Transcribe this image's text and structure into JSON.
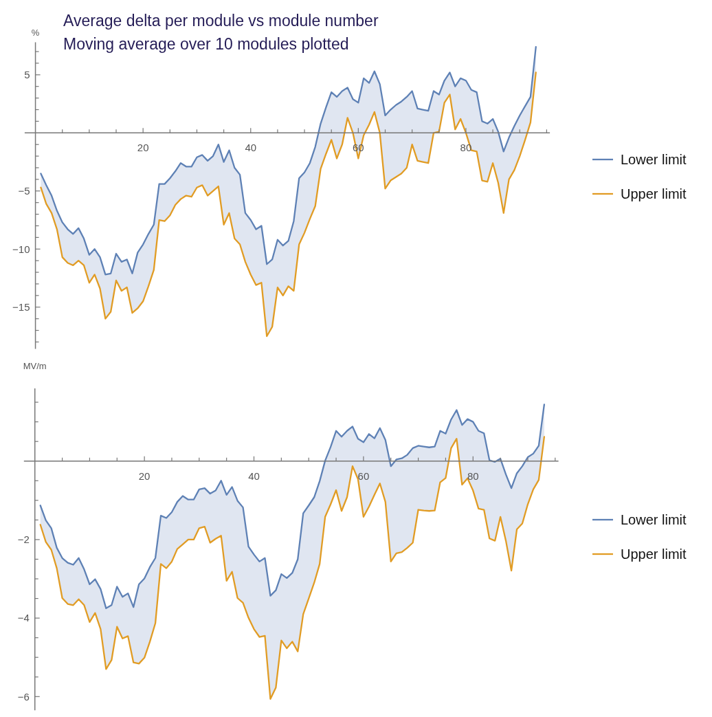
{
  "chart_data": [
    {
      "type": "line",
      "title": "Average delta per module vs module number",
      "subtitle": "Moving average over 10 modules plotted",
      "ylabel": "%",
      "legend": "right",
      "marker": "none",
      "line_style": "solid",
      "grid": false,
      "x": [
        1,
        2,
        3,
        4,
        5,
        6,
        7,
        8,
        9,
        10,
        11,
        12,
        13,
        14,
        15,
        16,
        17,
        18,
        19,
        20,
        21,
        22,
        23,
        24,
        25,
        26,
        27,
        28,
        29,
        30,
        31,
        32,
        33,
        34,
        35,
        36,
        37,
        38,
        39,
        40,
        41,
        42,
        43,
        44,
        45,
        46,
        47,
        48,
        49,
        50,
        51,
        52,
        53,
        54,
        55,
        56,
        57,
        58,
        59,
        60,
        61,
        62,
        63,
        64,
        65,
        66,
        67,
        68,
        69,
        70,
        71,
        72,
        73,
        74,
        75,
        76,
        77,
        78,
        79,
        80,
        81,
        82,
        83,
        84,
        85,
        86,
        87,
        88,
        89,
        90,
        91,
        92,
        93
      ],
      "xlim": [
        -2,
        95.6
      ],
      "ylim": [
        -18.6,
        7.8
      ],
      "xticks": [
        {
          "value": 5,
          "label": null
        },
        {
          "value": 10,
          "label": null
        },
        {
          "value": 15,
          "label": null
        },
        20,
        {
          "value": 25,
          "label": null
        },
        {
          "value": 30,
          "label": null
        },
        {
          "value": 35,
          "label": null
        },
        40,
        {
          "value": 45,
          "label": null
        },
        {
          "value": 50,
          "label": null
        },
        {
          "value": 55,
          "label": null
        },
        60,
        {
          "value": 65,
          "label": null
        },
        {
          "value": 70,
          "label": null
        },
        {
          "value": 75,
          "label": null
        },
        80,
        {
          "value": 85,
          "label": null
        },
        {
          "value": 90,
          "label": null
        },
        {
          "value": 95,
          "label": null
        }
      ],
      "yticks": [
        {
          "value": -18,
          "label": null
        },
        {
          "value": -17,
          "label": null
        },
        {
          "value": -16,
          "label": null
        },
        -15,
        {
          "value": -14,
          "label": null
        },
        {
          "value": -13,
          "label": null
        },
        {
          "value": -12,
          "label": null
        },
        {
          "value": -11,
          "label": null
        },
        -10,
        {
          "value": -9,
          "label": null
        },
        {
          "value": -8,
          "label": null
        },
        {
          "value": -7,
          "label": null
        },
        {
          "value": -6,
          "label": null
        },
        -5,
        {
          "value": -4,
          "label": null
        },
        {
          "value": -3,
          "label": null
        },
        {
          "value": -2,
          "label": null
        },
        {
          "value": -1,
          "label": null
        },
        {
          "value": 1,
          "label": null
        },
        {
          "value": 2,
          "label": null
        },
        {
          "value": 3,
          "label": null
        },
        {
          "value": 4,
          "label": null
        },
        5,
        {
          "value": 6,
          "label": null
        },
        {
          "value": 7,
          "label": null
        }
      ],
      "series": [
        {
          "name": "Lower limit",
          "color": "#5e81b5",
          "lower": [
            -4.7,
            -6.1,
            -6.9,
            -8.3,
            -10.7,
            -11.2,
            -11.4,
            -11.0,
            -11.4,
            -12.9,
            -12.2,
            -13.4,
            -16.0,
            -15.4,
            -12.7,
            -13.6,
            -13.3,
            -15.5,
            -15.1,
            -14.5,
            -13.2,
            -11.8,
            -7.5,
            -7.6,
            -7.1,
            -6.2,
            -5.7,
            -5.4,
            -5.5,
            -4.7,
            -4.5,
            -5.4,
            -5.0,
            -4.6,
            -7.9,
            -6.9,
            -9.1,
            -9.6,
            -11.1,
            -12.2,
            -13.1,
            -12.9,
            -17.5,
            -16.7,
            -13.3,
            -14.0,
            -13.2,
            -13.6,
            -9.6,
            -8.6,
            -7.4,
            -6.3,
            -3.1,
            -1.8,
            -0.6,
            -2.2,
            -1.0,
            1.3,
            0.0,
            -2.2,
            -0.2,
            0.7,
            1.8,
            0.0,
            -4.8,
            -4.1,
            -3.8,
            -3.5,
            -3.0,
            -1.0,
            -2.4,
            -2.5,
            -2.6,
            0.0,
            0.1,
            2.6,
            3.3,
            0.3,
            1.2,
            0.0,
            -1.5,
            -1.6,
            -4.1,
            -4.2,
            -2.6,
            -4.3,
            -6.9,
            -4.0,
            -3.2,
            -2.0,
            -0.6,
            0.9,
            5.2
          ],
          "upper": [
            -3.5,
            -4.5,
            -5.4,
            -6.7,
            -7.7,
            -8.3,
            -8.7,
            -8.2,
            -9.1,
            -10.5,
            -10.0,
            -10.7,
            -12.2,
            -12.1,
            -10.4,
            -11.1,
            -10.9,
            -12.1,
            -10.3,
            -9.6,
            -8.7,
            -7.9,
            -4.4,
            -4.4,
            -3.9,
            -3.3,
            -2.6,
            -2.9,
            -2.9,
            -2.1,
            -1.9,
            -2.4,
            -2.0,
            -1.0,
            -2.5,
            -1.5,
            -3.0,
            -3.6,
            -6.9,
            -7.5,
            -8.3,
            -8.0,
            -11.3,
            -10.9,
            -9.2,
            -9.7,
            -9.3,
            -7.6,
            -3.9,
            -3.4,
            -2.6,
            -1.2,
            0.8,
            2.2,
            3.5,
            3.1,
            3.6,
            3.9,
            2.9,
            2.6,
            4.7,
            4.3,
            5.3,
            4.2,
            1.5,
            2.0,
            2.4,
            2.7,
            3.1,
            3.6,
            2.1,
            2.0,
            1.9,
            3.6,
            3.3,
            4.5,
            5.2,
            4.0,
            4.7,
            4.5,
            3.7,
            3.5,
            1.0,
            0.8,
            1.2,
            0.1,
            -1.6,
            -0.4,
            0.6,
            1.5,
            2.3,
            3.1,
            7.4
          ],
          "values": [
            -3.5,
            -4.5,
            -5.4,
            -6.7,
            -7.7,
            -8.3,
            -8.7,
            -8.2,
            -9.1,
            -10.5,
            -10.0,
            -10.7,
            -12.2,
            -12.1,
            -10.4,
            -11.1,
            -10.9,
            -12.1,
            -10.3,
            -9.6,
            -8.7,
            -7.9,
            -4.4,
            -4.4,
            -3.9,
            -3.3,
            -2.6,
            -2.9,
            -2.9,
            -2.1,
            -1.9,
            -2.4,
            -2.0,
            -1.0,
            -2.5,
            -1.5,
            -3.0,
            -3.6,
            -6.9,
            -7.5,
            -8.3,
            -8.0,
            -11.3,
            -10.9,
            -9.2,
            -9.7,
            -9.3,
            -7.6,
            -3.9,
            -3.4,
            -2.6,
            -1.2,
            0.8,
            2.2,
            3.5,
            3.1,
            3.6,
            3.9,
            2.9,
            2.6,
            4.7,
            4.3,
            5.3,
            4.2,
            1.5,
            2.0,
            2.4,
            2.7,
            3.1,
            3.6,
            2.1,
            2.0,
            1.9,
            3.6,
            3.3,
            4.5,
            5.2,
            4.0,
            4.7,
            4.5,
            3.7,
            3.5,
            1.0,
            0.8,
            1.2,
            0.1,
            -1.6,
            -0.4,
            0.6,
            1.5,
            2.3,
            3.1,
            7.4
          ]
        },
        {
          "name": "Upper limit",
          "color": "#e19c24",
          "values": [
            -4.7,
            -6.1,
            -6.9,
            -8.3,
            -10.7,
            -11.2,
            -11.4,
            -11.0,
            -11.4,
            -12.9,
            -12.2,
            -13.4,
            -16.0,
            -15.4,
            -12.7,
            -13.6,
            -13.3,
            -15.5,
            -15.1,
            -14.5,
            -13.2,
            -11.8,
            -7.5,
            -7.6,
            -7.1,
            -6.2,
            -5.7,
            -5.4,
            -5.5,
            -4.7,
            -4.5,
            -5.4,
            -5.0,
            -4.6,
            -7.9,
            -6.9,
            -9.1,
            -9.6,
            -11.1,
            -12.2,
            -13.1,
            -12.9,
            -17.5,
            -16.7,
            -13.3,
            -14.0,
            -13.2,
            -13.6,
            -9.6,
            -8.6,
            -7.4,
            -6.3,
            -3.1,
            -1.8,
            -0.6,
            -2.2,
            -1.0,
            1.3,
            0.0,
            -2.2,
            -0.2,
            0.7,
            1.8,
            0.0,
            -4.8,
            -4.1,
            -3.8,
            -3.5,
            -3.0,
            -1.0,
            -2.4,
            -2.5,
            -2.6,
            0.0,
            0.1,
            2.6,
            3.3,
            0.3,
            1.2,
            0.0,
            -1.5,
            -1.6,
            -4.1,
            -4.2,
            -2.6,
            -4.3,
            -6.9,
            -4.0,
            -3.2,
            -2.0,
            -0.6,
            0.9,
            5.2
          ]
        }
      ]
    },
    {
      "type": "line",
      "ylabel": "MV/m",
      "legend": "right",
      "marker": "none",
      "line_style": "solid",
      "grid": false,
      "x": [
        1,
        2,
        3,
        4,
        5,
        6,
        7,
        8,
        9,
        10,
        11,
        12,
        13,
        14,
        15,
        16,
        17,
        18,
        19,
        20,
        21,
        22,
        23,
        24,
        25,
        26,
        27,
        28,
        29,
        30,
        31,
        32,
        33,
        34,
        35,
        36,
        37,
        38,
        39,
        40,
        41,
        42,
        43,
        44,
        45,
        46,
        47,
        48,
        49,
        50,
        51,
        52,
        53,
        54,
        55,
        56,
        57,
        58,
        59,
        60,
        61,
        62,
        63,
        64,
        65,
        66,
        67,
        68,
        69,
        70,
        71,
        72,
        73,
        74,
        75,
        76,
        77,
        78,
        79,
        80,
        81,
        82,
        83,
        84,
        85,
        86,
        87,
        88,
        89,
        90,
        91,
        92,
        93
      ],
      "xlim": [
        -2,
        95.6
      ],
      "ylim": [
        -6.35,
        1.85
      ],
      "xticks": [
        {
          "value": 5,
          "label": null
        },
        {
          "value": 10,
          "label": null
        },
        {
          "value": 15,
          "label": null
        },
        20,
        {
          "value": 25,
          "label": null
        },
        {
          "value": 30,
          "label": null
        },
        {
          "value": 35,
          "label": null
        },
        40,
        {
          "value": 45,
          "label": null
        },
        {
          "value": 50,
          "label": null
        },
        {
          "value": 55,
          "label": null
        },
        60,
        {
          "value": 65,
          "label": null
        },
        {
          "value": 70,
          "label": null
        },
        {
          "value": 75,
          "label": null
        },
        80,
        {
          "value": 85,
          "label": null
        },
        {
          "value": 90,
          "label": null
        },
        {
          "value": 95,
          "label": null
        }
      ],
      "yticks": [
        -6,
        {
          "value": -5.5,
          "label": null
        },
        {
          "value": -5,
          "label": null
        },
        {
          "value": -4.5,
          "label": null
        },
        -4,
        {
          "value": -3.5,
          "label": null
        },
        {
          "value": -3,
          "label": null
        },
        {
          "value": -2.5,
          "label": null
        },
        -2,
        {
          "value": -1.5,
          "label": null
        },
        {
          "value": -1,
          "label": null
        },
        {
          "value": -0.5,
          "label": null
        },
        {
          "value": 0.5,
          "label": null
        },
        {
          "value": 1,
          "label": null
        },
        {
          "value": 1.5,
          "label": null
        }
      ],
      "series": [
        {
          "name": "Lower limit",
          "color": "#5e81b5",
          "lower": [
            -1.62,
            -2.06,
            -2.26,
            -2.73,
            -3.49,
            -3.64,
            -3.67,
            -3.52,
            -3.67,
            -4.1,
            -3.87,
            -4.28,
            -5.3,
            -5.07,
            -4.22,
            -4.52,
            -4.46,
            -5.13,
            -5.16,
            -5.01,
            -4.6,
            -4.13,
            -2.62,
            -2.73,
            -2.56,
            -2.24,
            -2.12,
            -2.0,
            -2.0,
            -1.71,
            -1.67,
            -2.08,
            -1.98,
            -1.9,
            -3.05,
            -2.82,
            -3.49,
            -3.61,
            -3.99,
            -4.28,
            -4.48,
            -4.45,
            -6.06,
            -5.77,
            -4.57,
            -4.77,
            -4.6,
            -4.85,
            -3.9,
            -3.5,
            -3.1,
            -2.62,
            -1.42,
            -1.1,
            -0.74,
            -1.27,
            -0.92,
            -0.13,
            -0.46,
            -1.42,
            -1.16,
            -0.86,
            -0.57,
            -1.04,
            -2.56,
            -2.35,
            -2.32,
            -2.21,
            -2.08,
            -1.24,
            -1.26,
            -1.27,
            -1.26,
            -0.54,
            -0.43,
            0.33,
            0.57,
            -0.6,
            -0.44,
            -0.75,
            -1.21,
            -1.24,
            -1.97,
            -2.03,
            -1.42,
            -2.03,
            -2.79,
            -1.74,
            -1.59,
            -1.1,
            -0.72,
            -0.48,
            0.62
          ],
          "upper": [
            -1.13,
            -1.51,
            -1.71,
            -2.21,
            -2.47,
            -2.59,
            -2.64,
            -2.47,
            -2.76,
            -3.14,
            -3.01,
            -3.26,
            -3.75,
            -3.67,
            -3.2,
            -3.46,
            -3.37,
            -3.72,
            -3.14,
            -2.99,
            -2.7,
            -2.47,
            -1.39,
            -1.45,
            -1.3,
            -1.04,
            -0.89,
            -0.98,
            -0.98,
            -0.72,
            -0.69,
            -0.83,
            -0.75,
            -0.5,
            -0.86,
            -0.66,
            -1.01,
            -1.18,
            -2.18,
            -2.38,
            -2.56,
            -2.47,
            -3.43,
            -3.29,
            -2.88,
            -2.98,
            -2.85,
            -2.5,
            -1.33,
            -1.13,
            -0.92,
            -0.51,
            0.01,
            0.36,
            0.77,
            0.62,
            0.77,
            0.88,
            0.57,
            0.48,
            0.69,
            0.58,
            0.84,
            0.54,
            -0.13,
            0.04,
            0.07,
            0.16,
            0.33,
            0.39,
            0.37,
            0.35,
            0.37,
            0.77,
            0.7,
            1.06,
            1.3,
            0.92,
            1.07,
            1.0,
            0.77,
            0.71,
            0.02,
            -0.02,
            0.06,
            -0.34,
            -0.69,
            -0.31,
            -0.13,
            0.1,
            0.19,
            0.39,
            1.44
          ],
          "values": [
            -1.13,
            -1.51,
            -1.71,
            -2.21,
            -2.47,
            -2.59,
            -2.64,
            -2.47,
            -2.76,
            -3.14,
            -3.01,
            -3.26,
            -3.75,
            -3.67,
            -3.2,
            -3.46,
            -3.37,
            -3.72,
            -3.14,
            -2.99,
            -2.7,
            -2.47,
            -1.39,
            -1.45,
            -1.3,
            -1.04,
            -0.89,
            -0.98,
            -0.98,
            -0.72,
            -0.69,
            -0.83,
            -0.75,
            -0.5,
            -0.86,
            -0.66,
            -1.01,
            -1.18,
            -2.18,
            -2.38,
            -2.56,
            -2.47,
            -3.43,
            -3.29,
            -2.88,
            -2.98,
            -2.85,
            -2.5,
            -1.33,
            -1.13,
            -0.92,
            -0.51,
            0.01,
            0.36,
            0.77,
            0.62,
            0.77,
            0.88,
            0.57,
            0.48,
            0.69,
            0.58,
            0.84,
            0.54,
            -0.13,
            0.04,
            0.07,
            0.16,
            0.33,
            0.39,
            0.37,
            0.35,
            0.37,
            0.77,
            0.7,
            1.06,
            1.3,
            0.92,
            1.07,
            1.0,
            0.77,
            0.71,
            0.02,
            -0.02,
            0.06,
            -0.34,
            -0.69,
            -0.31,
            -0.13,
            0.1,
            0.19,
            0.39,
            1.44
          ]
        },
        {
          "name": "Upper limit",
          "color": "#e19c24",
          "values": [
            -1.62,
            -2.06,
            -2.26,
            -2.73,
            -3.49,
            -3.64,
            -3.67,
            -3.52,
            -3.67,
            -4.1,
            -3.87,
            -4.28,
            -5.3,
            -5.07,
            -4.22,
            -4.52,
            -4.46,
            -5.13,
            -5.16,
            -5.01,
            -4.6,
            -4.13,
            -2.62,
            -2.73,
            -2.56,
            -2.24,
            -2.12,
            -2.0,
            -2.0,
            -1.71,
            -1.67,
            -2.08,
            -1.98,
            -1.9,
            -3.05,
            -2.82,
            -3.49,
            -3.61,
            -3.99,
            -4.28,
            -4.48,
            -4.45,
            -6.06,
            -5.77,
            -4.57,
            -4.77,
            -4.6,
            -4.85,
            -3.9,
            -3.5,
            -3.1,
            -2.62,
            -1.42,
            -1.1,
            -0.74,
            -1.27,
            -0.92,
            -0.13,
            -0.46,
            -1.42,
            -1.16,
            -0.86,
            -0.57,
            -1.04,
            -2.56,
            -2.35,
            -2.32,
            -2.21,
            -2.08,
            -1.24,
            -1.26,
            -1.27,
            -1.26,
            -0.54,
            -0.43,
            0.33,
            0.57,
            -0.6,
            -0.44,
            -0.75,
            -1.21,
            -1.24,
            -1.97,
            -2.03,
            -1.42,
            -2.03,
            -2.79,
            -1.74,
            -1.59,
            -1.1,
            -0.72,
            -0.48,
            0.62
          ]
        }
      ]
    }
  ]
}
